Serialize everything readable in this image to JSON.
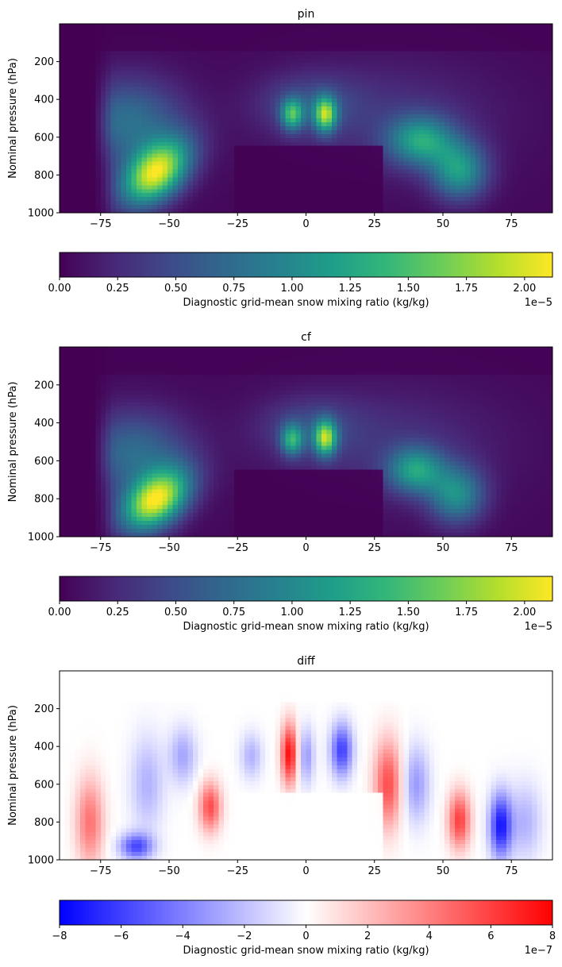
{
  "chart_data": [
    {
      "type": "heatmap",
      "title": "pin",
      "ylabel": "Nominal pressure (hPa)",
      "xlim": [
        -90,
        90
      ],
      "ylim": [
        1000,
        0
      ],
      "x_ticks": [
        "−75",
        "−50",
        "−25",
        "0",
        "25",
        "50",
        "75"
      ],
      "x_tick_values": [
        -75,
        -50,
        -25,
        0,
        25,
        50,
        75
      ],
      "y_ticks": [
        "200",
        "400",
        "600",
        "800",
        "1000"
      ],
      "y_tick_values": [
        200,
        400,
        600,
        800,
        1000
      ],
      "colormap": "viridis",
      "colorbar": {
        "label": "Diagnostic grid-mean snow mixing ratio (kg/kg)",
        "range": [
          0.0,
          2.12e-05
        ],
        "ticks": [
          "0.00",
          "0.25",
          "0.50",
          "0.75",
          "1.00",
          "1.25",
          "1.50",
          "1.75",
          "2.00"
        ],
        "tick_values": [
          0.0,
          0.25,
          0.5,
          0.75,
          1.0,
          1.25,
          1.5,
          1.75,
          2.0
        ],
        "range_scaled": [
          0,
          2.12
        ],
        "scale_label": "1e−5"
      },
      "features": [
        {
          "lat": -55,
          "p": 790,
          "value": 2e-05
        },
        {
          "lat": -5,
          "p": 480,
          "value": 1.2e-05
        },
        {
          "lat": 7,
          "p": 480,
          "value": 1.5e-05
        },
        {
          "lat": 42,
          "p": 640,
          "value": 1.1e-05
        },
        {
          "lat": 55,
          "p": 760,
          "value": 1.1e-05
        }
      ]
    },
    {
      "type": "heatmap",
      "title": "cf",
      "ylabel": "Nominal pressure (hPa)",
      "xlim": [
        -90,
        90
      ],
      "ylim": [
        1000,
        0
      ],
      "x_ticks": [
        "−75",
        "−50",
        "−25",
        "0",
        "25",
        "50",
        "75"
      ],
      "x_tick_values": [
        -75,
        -50,
        -25,
        0,
        25,
        50,
        75
      ],
      "y_ticks": [
        "200",
        "400",
        "600",
        "800",
        "1000"
      ],
      "y_tick_values": [
        200,
        400,
        600,
        800,
        1000
      ],
      "colormap": "viridis",
      "colorbar": {
        "label": "Diagnostic grid-mean snow mixing ratio (kg/kg)",
        "range": [
          0.0,
          2.12e-05
        ],
        "ticks": [
          "0.00",
          "0.25",
          "0.50",
          "0.75",
          "1.00",
          "1.25",
          "1.50",
          "1.75",
          "2.00"
        ],
        "tick_values": [
          0.0,
          0.25,
          0.5,
          0.75,
          1.0,
          1.25,
          1.5,
          1.75,
          2.0
        ],
        "range_scaled": [
          0,
          2.12
        ],
        "scale_label": "1e−5"
      },
      "features": [
        {
          "lat": -55,
          "p": 810,
          "value": 2e-05
        },
        {
          "lat": -5,
          "p": 490,
          "value": 1.15e-05
        },
        {
          "lat": 7,
          "p": 480,
          "value": 1.55e-05
        },
        {
          "lat": 40,
          "p": 650,
          "value": 1.05e-05
        },
        {
          "lat": 55,
          "p": 780,
          "value": 1e-05
        }
      ]
    },
    {
      "type": "heatmap",
      "title": "diff",
      "ylabel": "Nominal pressure (hPa)",
      "xlim": [
        -90,
        90
      ],
      "ylim": [
        1000,
        0
      ],
      "x_ticks": [
        "−75",
        "−50",
        "−25",
        "0",
        "25",
        "50",
        "75"
      ],
      "x_tick_values": [
        -75,
        -50,
        -25,
        0,
        25,
        50,
        75
      ],
      "y_ticks": [
        "200",
        "400",
        "600",
        "800",
        "1000"
      ],
      "y_tick_values": [
        200,
        400,
        600,
        800,
        1000
      ],
      "colormap": "bwr",
      "colorbar": {
        "label": "Diagnostic grid-mean snow mixing ratio (kg/kg)",
        "range": [
          -8e-07,
          8e-07
        ],
        "ticks": [
          "−8",
          "−6",
          "−4",
          "−2",
          "0",
          "2",
          "4",
          "6",
          "8"
        ],
        "tick_values": [
          -8,
          -6,
          -4,
          -2,
          0,
          2,
          4,
          6,
          8
        ],
        "range_scaled": [
          -8,
          8
        ],
        "scale_label": "1e−7"
      },
      "features": [
        {
          "lat": -78,
          "p": 820,
          "value": 5e-07
        },
        {
          "lat": -62,
          "p": 930,
          "value": -6.5e-07
        },
        {
          "lat": -35,
          "p": 720,
          "value": 6e-07
        },
        {
          "lat": -6,
          "p": 460,
          "value": 8e-07
        },
        {
          "lat": 13,
          "p": 460,
          "value": -6.5e-07
        },
        {
          "lat": 30,
          "p": 650,
          "value": 6.5e-07
        },
        {
          "lat": 56,
          "p": 800,
          "value": 6.5e-07
        },
        {
          "lat": 71,
          "p": 820,
          "value": -8e-07
        }
      ]
    }
  ]
}
